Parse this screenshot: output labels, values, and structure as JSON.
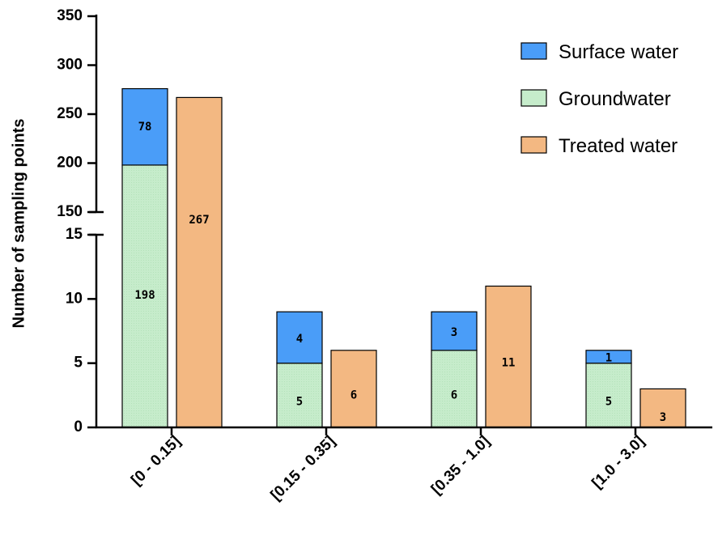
{
  "chart_data": {
    "type": "bar",
    "stacked_series_group": "sum",
    "ylabel": "Number of sampling points",
    "xlabel": "",
    "categories": [
      "[0 - 0.15]",
      "[0.15 - 0.35]",
      "[0.35 - 1.0]",
      "[1.0 - 3.0]"
    ],
    "y_axis_break": {
      "lower_range": [
        0,
        15
      ],
      "upper_range": [
        150,
        350
      ]
    },
    "y_ticks_lower": [
      "0",
      "5",
      "10",
      "15"
    ],
    "y_ticks_upper": [
      "150",
      "200",
      "250",
      "300",
      "350"
    ],
    "series": [
      {
        "name": "Groundwater",
        "stack": "sum",
        "values": [
          198,
          5,
          6,
          5
        ],
        "labels": [
          "198",
          "5",
          "6",
          "5"
        ]
      },
      {
        "name": "Surface water",
        "stack": "sum",
        "values": [
          78,
          4,
          3,
          1
        ],
        "labels": [
          "78",
          "4",
          "3",
          "1"
        ]
      },
      {
        "name": "Treated water",
        "stack": "treated",
        "values": [
          267,
          6,
          11,
          3
        ],
        "labels": [
          "267",
          "6",
          "11",
          "3"
        ]
      }
    ],
    "legend": {
      "position": "top-right",
      "items": [
        "Surface water",
        "Groundwater",
        "Treated water"
      ]
    },
    "colors": {
      "Surface water": "#4a9df8",
      "Groundwater": "#c6eccb",
      "Treated water": "#f3b882"
    },
    "grid": false
  }
}
